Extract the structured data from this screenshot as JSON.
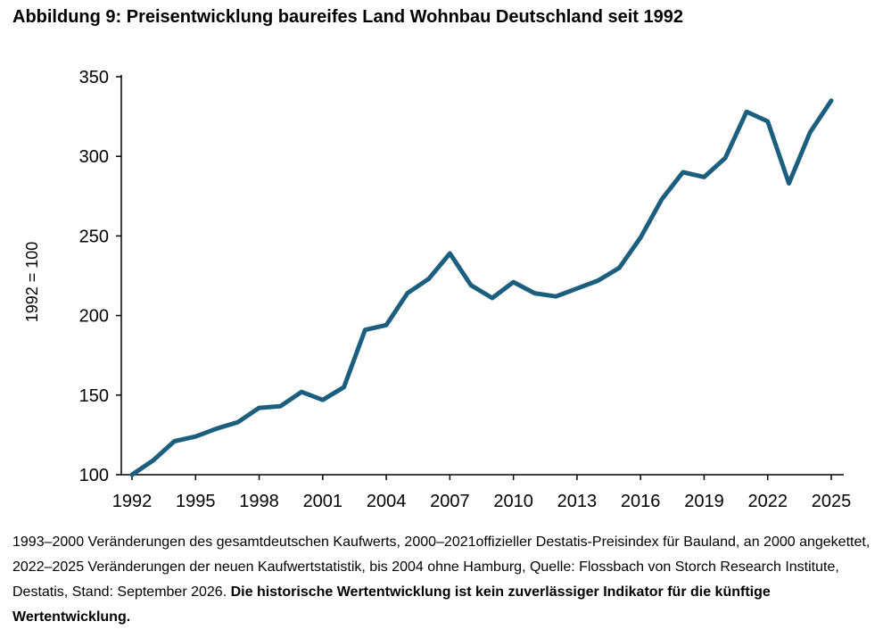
{
  "title": "Abbildung 9: Preisentwicklung baureifes Land Wohnbau Deutschland seit 1992",
  "footnote": {
    "text": "1993–2000 Veränderungen des gesamtdeutschen Kaufwerts, 2000–2021offizieller Destatis-Preisindex für Bauland, an 2000 angekettet, 2022–2025 Veränderungen der neuen Kaufwertstatistik, bis 2004 ohne Hamburg, Quelle: Flossbach von Storch Research Institute, Destatis, Stand: September 2026. ",
    "disclaimer": "Die historische Wertentwicklung ist kein zuverlässiger Indikator für die künftige Wertentwicklung."
  },
  "chart_data": {
    "type": "line",
    "title": "Abbildung 9: Preisentwicklung baureifes Land Wohnbau Deutschland seit 1992",
    "xlabel": "",
    "ylabel": "1992 = 100",
    "xlim": [
      1992,
      2025
    ],
    "ylim": [
      100,
      350
    ],
    "x_ticks": [
      1992,
      1995,
      1998,
      2001,
      2004,
      2007,
      2010,
      2013,
      2016,
      2019,
      2022,
      2025
    ],
    "y_ticks": [
      100,
      150,
      200,
      250,
      300,
      350
    ],
    "grid": false,
    "legend": "none",
    "line_color": "#1b5e7e",
    "series": [
      {
        "x": [
          1992,
          1993,
          1994,
          1995,
          1996,
          1997,
          1998,
          1999,
          2000,
          2001,
          2002,
          2003,
          2004,
          2005,
          2006,
          2007,
          2008,
          2009,
          2010,
          2011,
          2012,
          2013,
          2014,
          2015,
          2016,
          2017,
          2018,
          2019,
          2020,
          2021,
          2022,
          2023,
          2024,
          2025
        ],
        "values": [
          100,
          109,
          121,
          124,
          129,
          133,
          142,
          143,
          152,
          147,
          155,
          191,
          194,
          214,
          223,
          239,
          219,
          211,
          221,
          214,
          212,
          217,
          222,
          230,
          249,
          273,
          290,
          287,
          299,
          328,
          322,
          283,
          315,
          335
        ]
      }
    ]
  }
}
